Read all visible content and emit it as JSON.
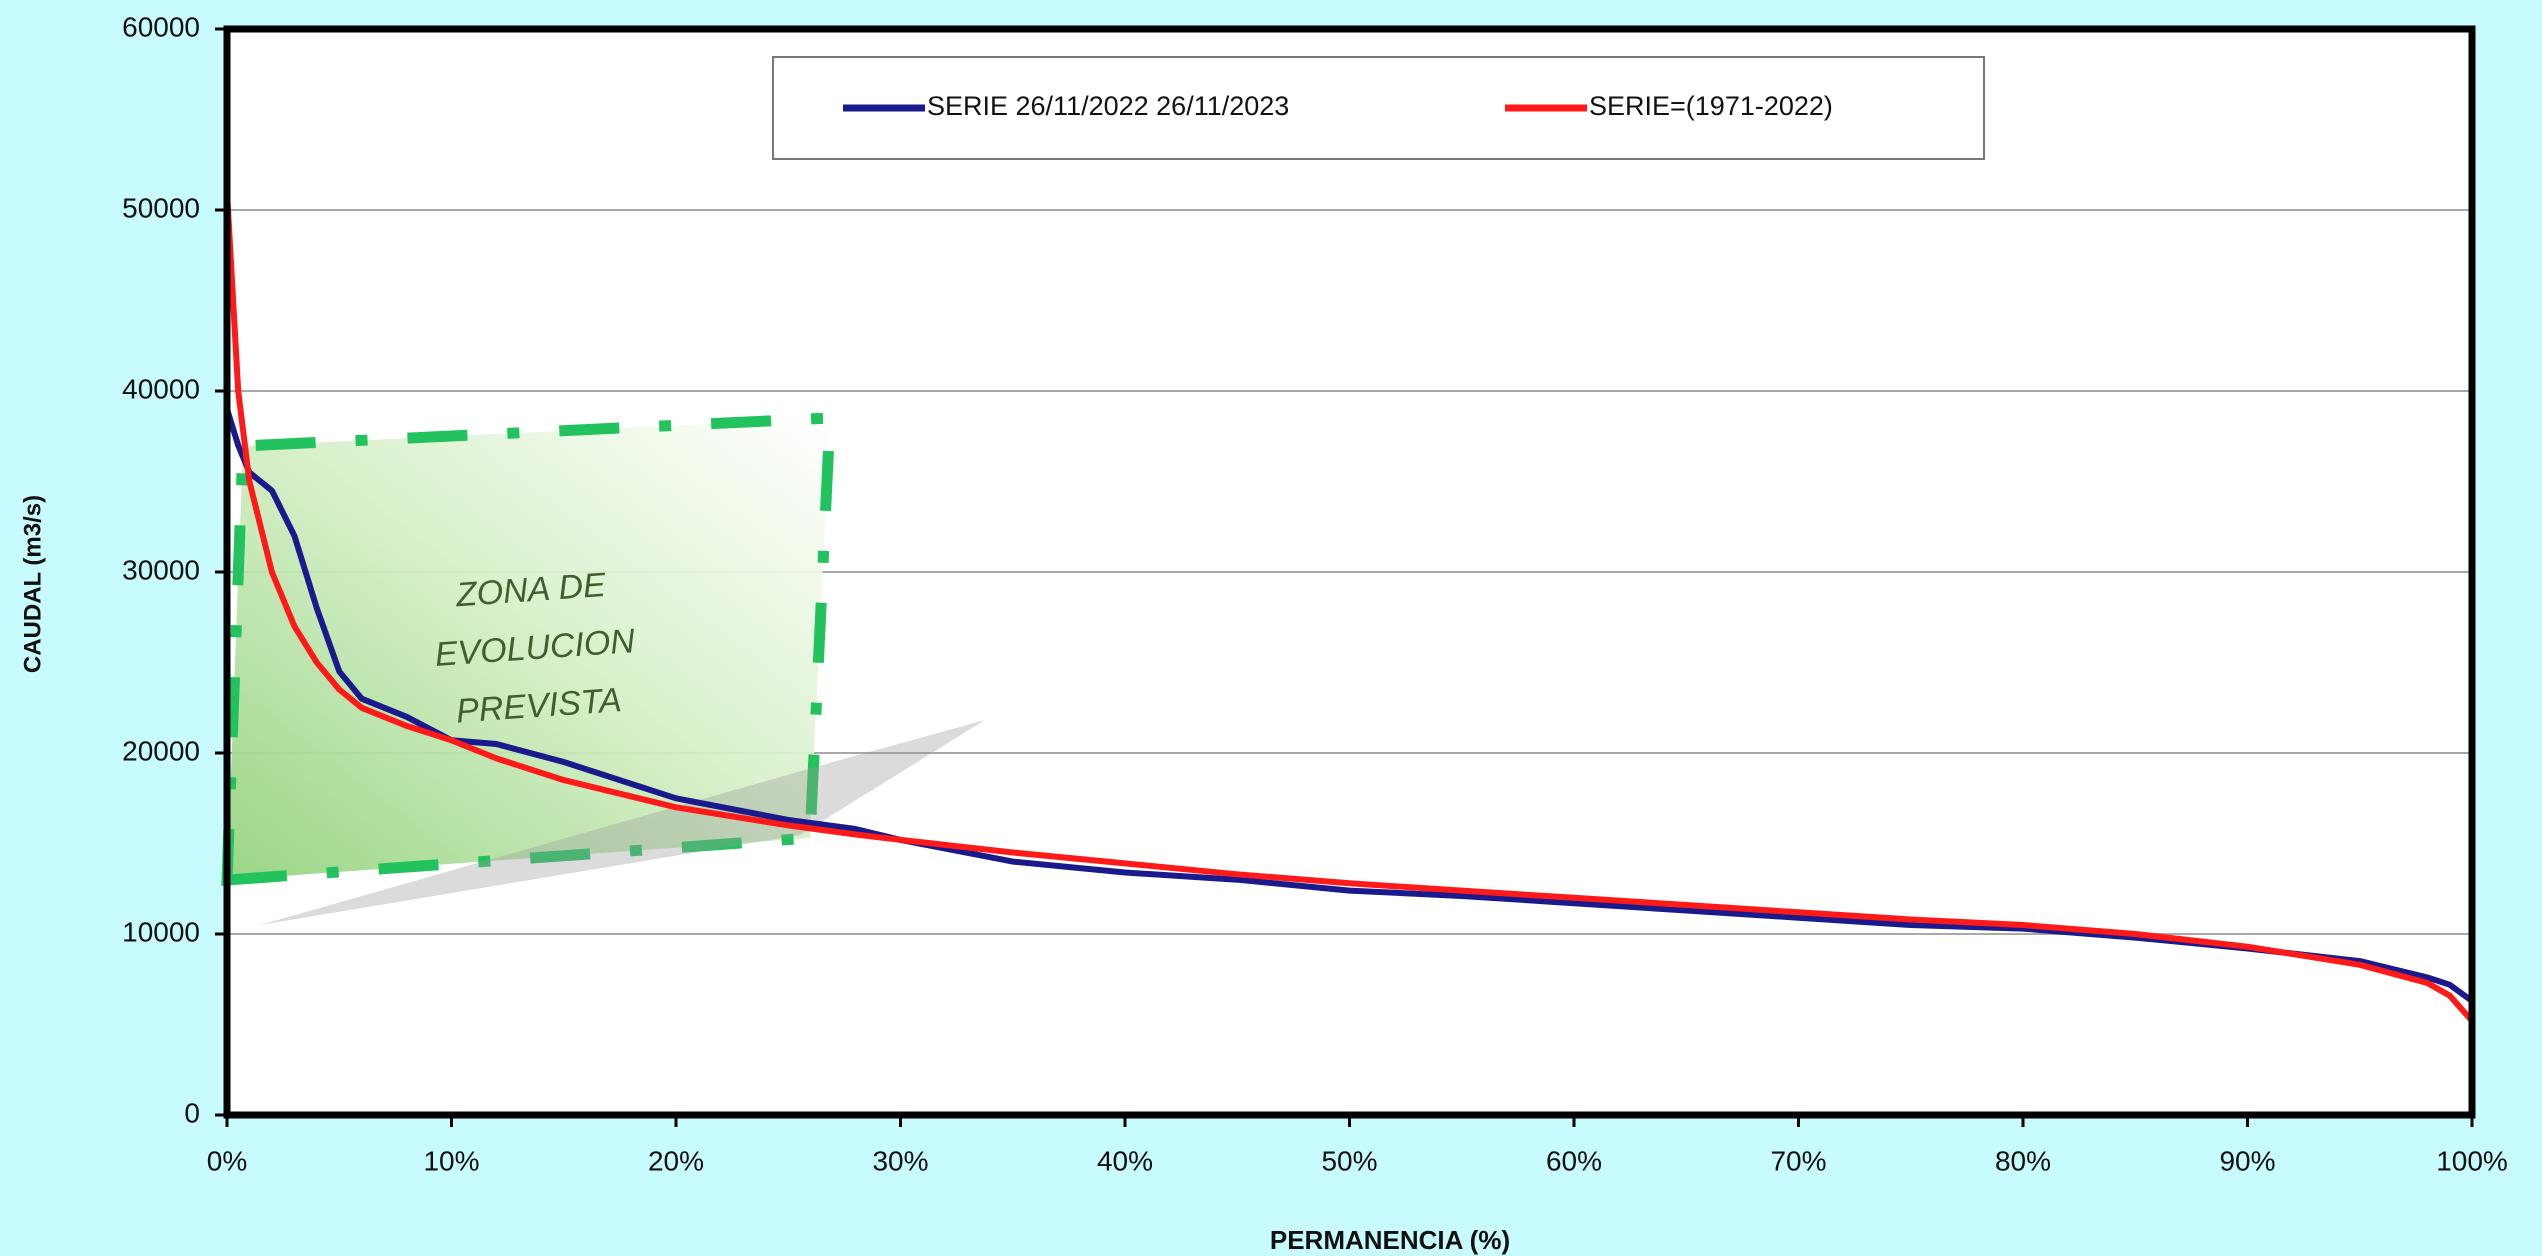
{
  "chart_data": {
    "type": "line",
    "xlabel": "PERMANENCIA  (%)",
    "ylabel": "CAUDAL (m3/s)",
    "annotation_lines": [
      "ZONA DE",
      "EVOLUCION",
      "PREVISTA"
    ],
    "x": [
      0,
      0.5,
      1,
      2,
      3,
      3.5,
      4,
      5,
      6,
      8,
      10,
      12,
      15,
      20,
      25,
      28,
      30,
      35,
      40,
      45,
      50,
      55,
      60,
      65,
      70,
      75,
      80,
      85,
      90,
      95,
      98,
      99,
      100
    ],
    "series": [
      {
        "name": "SERIE 26/11/2022 26/11/2023",
        "color": "#1a1a8c",
        "values": [
          39000,
          37000,
          35500,
          34500,
          32000,
          30000,
          28000,
          24500,
          23000,
          22000,
          20700,
          20500,
          19500,
          17500,
          16300,
          15800,
          15200,
          14000,
          13400,
          13000,
          12400,
          12100,
          11700,
          11300,
          10900,
          10500,
          10300,
          9800,
          9200,
          8500,
          7600,
          7200,
          6300
        ]
      },
      {
        "name": "SERIE=(1971-2022)",
        "color": "#ff1a1a",
        "values": [
          51000,
          40000,
          35000,
          30000,
          27000,
          26000,
          25000,
          23500,
          22500,
          21500,
          20700,
          19700,
          18500,
          17000,
          16000,
          15500,
          15200,
          14500,
          13900,
          13300,
          12800,
          12400,
          12000,
          11600,
          11200,
          10800,
          10500,
          10000,
          9300,
          8300,
          7300,
          6600,
          5200
        ]
      }
    ],
    "xlim": [
      0,
      100
    ],
    "xticks": [
      {
        "value": 0,
        "label": "0%"
      },
      {
        "value": 10,
        "label": "10%"
      },
      {
        "value": 20,
        "label": "20%"
      },
      {
        "value": 30,
        "label": "30%"
      },
      {
        "value": 40,
        "label": "40%"
      },
      {
        "value": 50,
        "label": "50%"
      },
      {
        "value": 60,
        "label": "60%"
      },
      {
        "value": 70,
        "label": "70%"
      },
      {
        "value": 80,
        "label": "80%"
      },
      {
        "value": 90,
        "label": "90%"
      },
      {
        "value": 100,
        "label": "100%"
      }
    ],
    "ylim": [
      0,
      60000
    ],
    "yticks": [
      0,
      10000,
      20000,
      30000,
      40000,
      50000,
      60000
    ],
    "grid": true,
    "legend": "top"
  }
}
